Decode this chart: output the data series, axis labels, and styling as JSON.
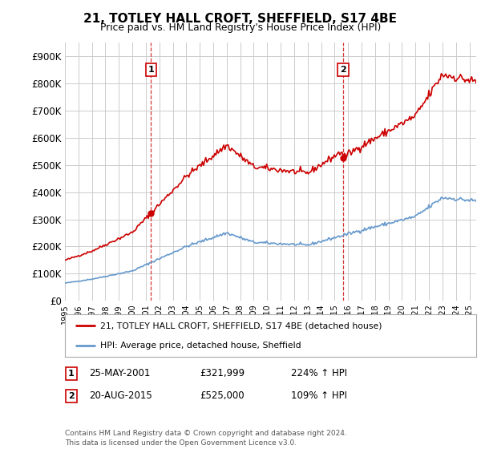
{
  "title": "21, TOTLEY HALL CROFT, SHEFFIELD, S17 4BE",
  "subtitle": "Price paid vs. HM Land Registry's House Price Index (HPI)",
  "ylabel_ticks": [
    "£0",
    "£100K",
    "£200K",
    "£300K",
    "£400K",
    "£500K",
    "£600K",
    "£700K",
    "£800K",
    "£900K"
  ],
  "ytick_values": [
    0,
    100000,
    200000,
    300000,
    400000,
    500000,
    600000,
    700000,
    800000,
    900000
  ],
  "ylim": [
    0,
    950000
  ],
  "xlim_start": 1995.0,
  "xlim_end": 2025.5,
  "sale1": {
    "date_num": 2001.39,
    "price": 321999,
    "label": "1"
  },
  "sale2": {
    "date_num": 2015.63,
    "price": 525000,
    "label": "2"
  },
  "legend_entries": [
    {
      "label": "21, TOTLEY HALL CROFT, SHEFFIELD, S17 4BE (detached house)",
      "color": "#cc0000"
    },
    {
      "label": "HPI: Average price, detached house, Sheffield",
      "color": "#6699cc"
    }
  ],
  "table_rows": [
    {
      "num": "1",
      "date": "25-MAY-2001",
      "price": "£321,999",
      "change": "224% ↑ HPI"
    },
    {
      "num": "2",
      "date": "20-AUG-2015",
      "price": "£525,000",
      "change": "109% ↑ HPI"
    }
  ],
  "footnote": "Contains HM Land Registry data © Crown copyright and database right 2024.\nThis data is licensed under the Open Government Licence v3.0.",
  "hpi_color": "#6699cc",
  "sale_color": "#cc0000",
  "grid_color": "#cccccc",
  "background_color": "#ffffff",
  "vline_color": "#cc0000"
}
